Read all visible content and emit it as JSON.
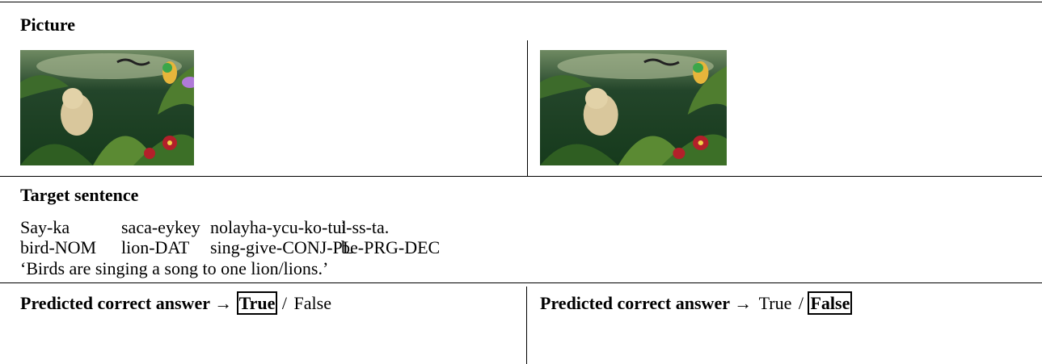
{
  "picture": {
    "label": "Picture"
  },
  "target_sentence": {
    "label": "Target sentence",
    "gloss": [
      [
        "Say-ka",
        "saca-eykey",
        "nolayha-ycu-ko-tul",
        "i-ss-ta."
      ],
      [
        "bird-NOM",
        "lion-DAT",
        "sing-give-CONJ-PL",
        "be-PRG-DEC"
      ]
    ],
    "translation": "‘Birds are singing a song to one lion/lions.’"
  },
  "answers": [
    {
      "label": "Predicted correct answer →",
      "options": [
        "True",
        "False"
      ],
      "separator": "/",
      "selected": 0
    },
    {
      "label": "Predicted correct answer →",
      "options": [
        "True",
        "False"
      ],
      "separator": "/",
      "selected": 1
    }
  ]
}
